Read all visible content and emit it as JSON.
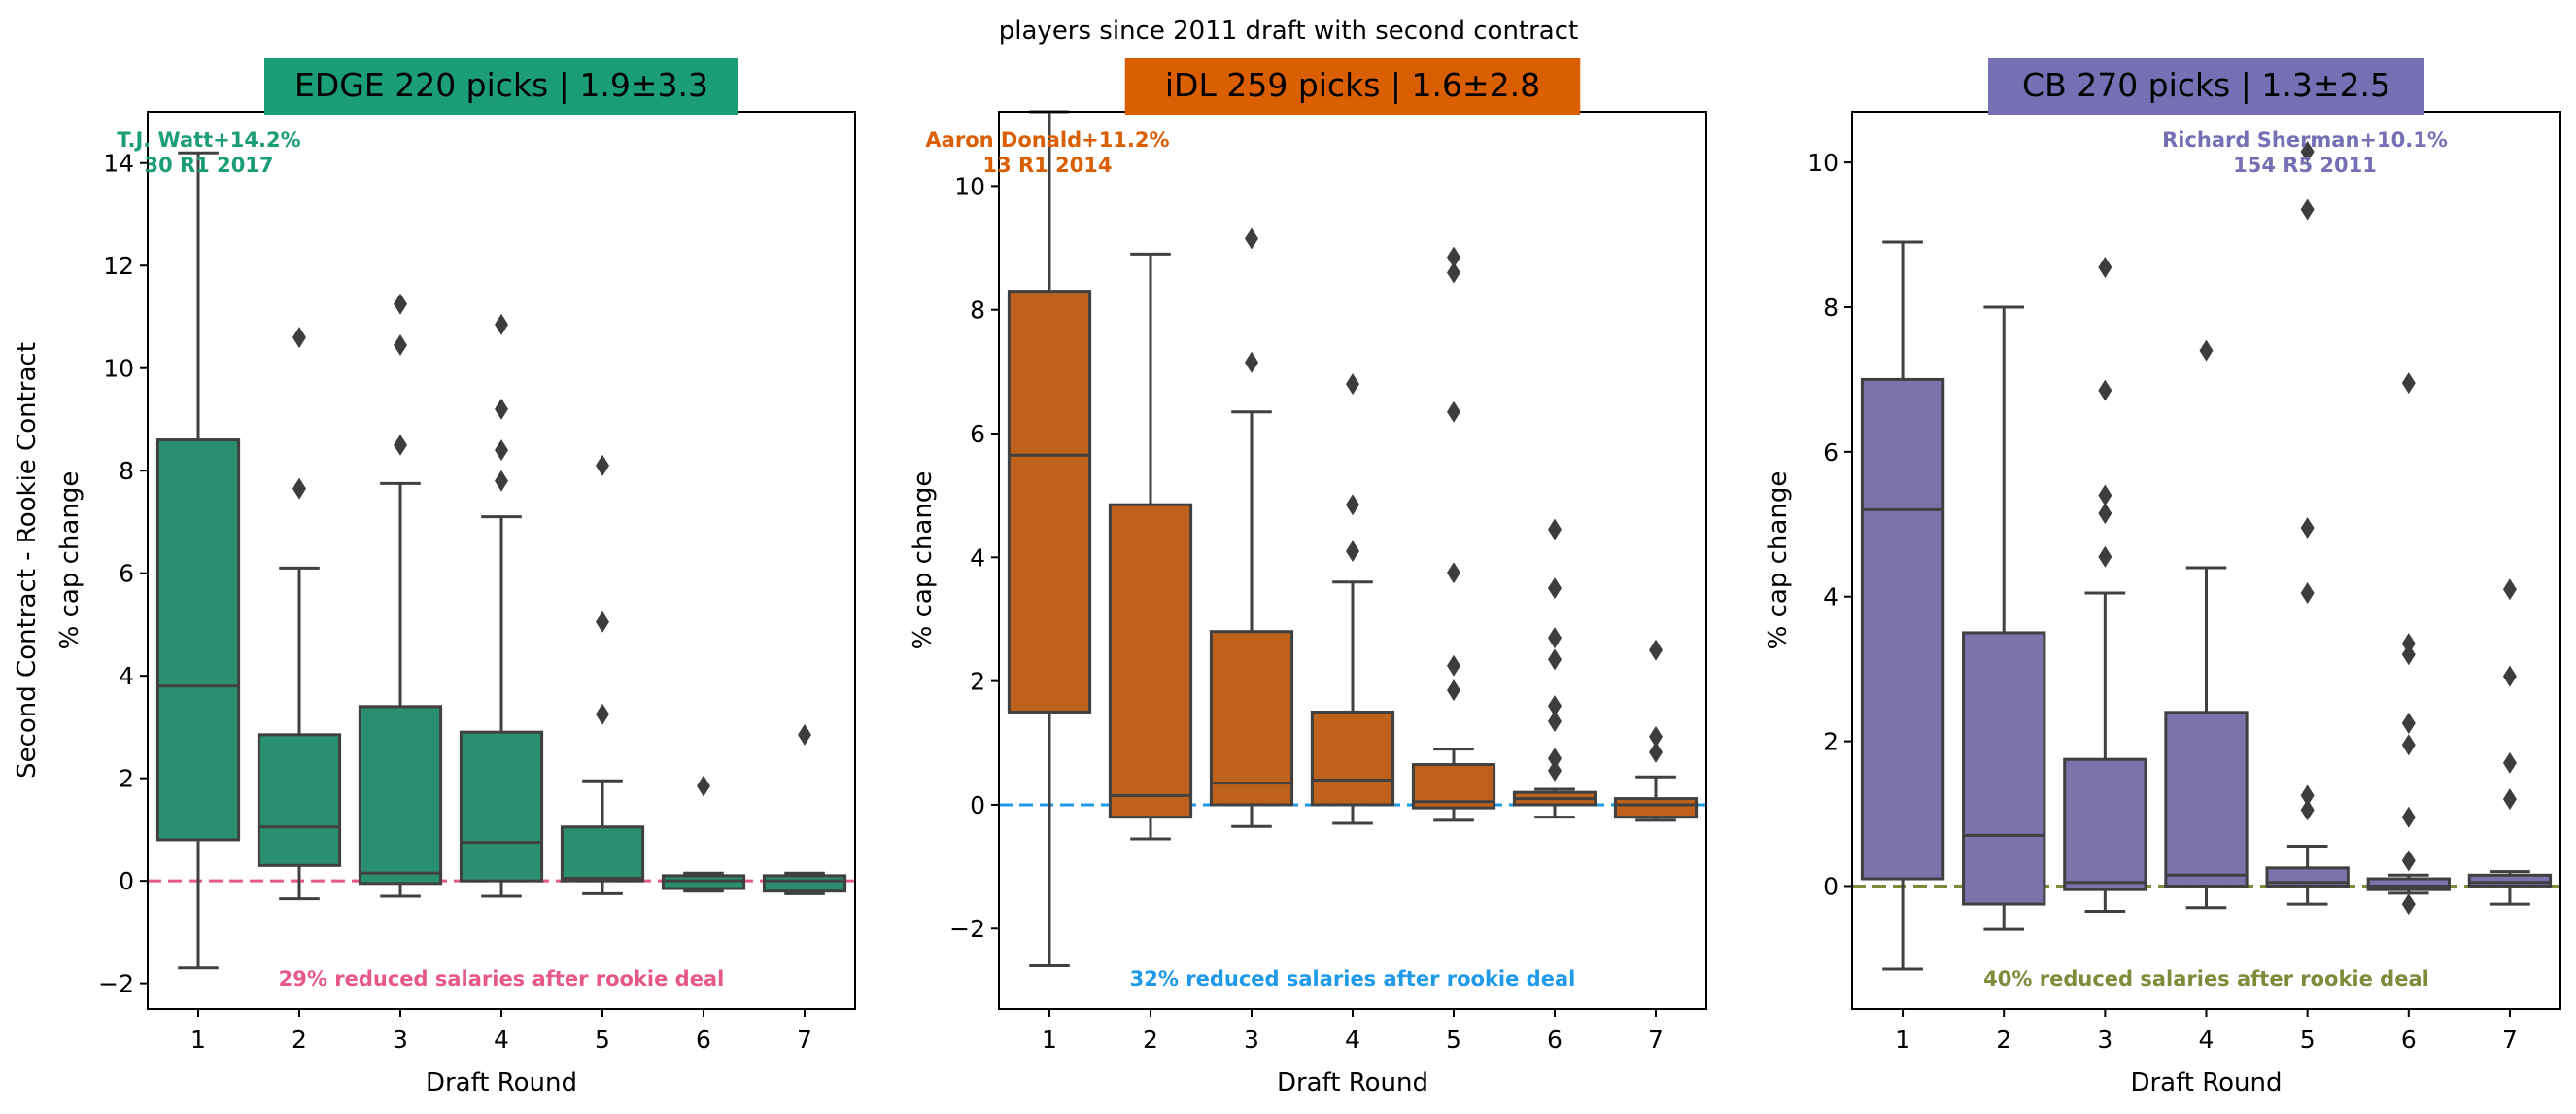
{
  "figure_title": "players since 2011 draft with second contract",
  "colors": {
    "edge": "#2A8E70",
    "idl": "#BE621B",
    "cb": "#7C73AC",
    "outline": "#404040"
  },
  "chart_data": [
    {
      "type": "box",
      "title": "EDGE 220 picks | 1.9±3.3",
      "xlabel": "Draft Round",
      "ylabel": [
        "Second Contract - Rookie Contract",
        "% cap change"
      ],
      "categories": [
        "1",
        "2",
        "3",
        "4",
        "5",
        "6",
        "7"
      ],
      "ylim": [
        -2.5,
        15
      ],
      "yticks": [
        -2,
        0,
        2,
        4,
        6,
        8,
        10,
        12,
        14
      ],
      "color": "#2A8E70",
      "title_bg": "#1B9E77",
      "ref_line": {
        "y": 0,
        "color": "#E7588A",
        "style": "dashed"
      },
      "boxes": [
        {
          "q1": 0.8,
          "median": 3.8,
          "q3": 8.6,
          "lo": -1.7,
          "hi": 14.2,
          "outliers": []
        },
        {
          "q1": 0.3,
          "median": 1.05,
          "q3": 2.85,
          "lo": -0.35,
          "hi": 6.1,
          "outliers": [
            7.65,
            10.6
          ]
        },
        {
          "q1": -0.05,
          "median": 0.15,
          "q3": 3.4,
          "lo": -0.3,
          "hi": 7.75,
          "outliers": [
            8.5,
            10.45,
            11.25
          ]
        },
        {
          "q1": 0.0,
          "median": 0.75,
          "q3": 2.9,
          "lo": -0.3,
          "hi": 7.1,
          "outliers": [
            7.8,
            8.4,
            9.2,
            10.85
          ]
        },
        {
          "q1": 0.0,
          "median": 0.05,
          "q3": 1.05,
          "lo": -0.25,
          "hi": 1.95,
          "outliers": [
            3.25,
            5.05,
            8.1
          ]
        },
        {
          "q1": -0.15,
          "median": 0.0,
          "q3": 0.1,
          "lo": -0.2,
          "hi": 0.15,
          "outliers": [
            1.85
          ]
        },
        {
          "q1": -0.2,
          "median": 0.0,
          "q3": 0.1,
          "lo": -0.25,
          "hi": 0.15,
          "outliers": [
            2.85
          ]
        }
      ],
      "top_label": {
        "line1": "T.J. Watt+14.2%",
        "line2": "30 R1 2017",
        "color": "#1B9E77"
      },
      "bottom_label": {
        "text": "29% reduced salaries after rookie deal",
        "color": "#E7588A"
      }
    },
    {
      "type": "box",
      "title": "iDL 259 picks | 1.6±2.8",
      "xlabel": "Draft Round",
      "ylabel": [
        "% cap change"
      ],
      "categories": [
        "1",
        "2",
        "3",
        "4",
        "5",
        "6",
        "7"
      ],
      "ylim": [
        -3.3,
        11.2
      ],
      "yticks": [
        -2,
        0,
        2,
        4,
        6,
        8,
        10
      ],
      "color": "#BE621B",
      "title_bg": "#D95F02",
      "ref_line": {
        "y": 0,
        "color": "#1F9AE8",
        "style": "dashed"
      },
      "boxes": [
        {
          "q1": 1.5,
          "median": 5.65,
          "q3": 8.3,
          "lo": -2.6,
          "hi": 11.2,
          "outliers": []
        },
        {
          "q1": -0.2,
          "median": 0.15,
          "q3": 4.85,
          "lo": -0.55,
          "hi": 8.9,
          "outliers": []
        },
        {
          "q1": 0.0,
          "median": 0.35,
          "q3": 2.8,
          "lo": -0.35,
          "hi": 6.35,
          "outliers": [
            7.15,
            9.15
          ]
        },
        {
          "q1": 0.0,
          "median": 0.4,
          "q3": 1.5,
          "lo": -0.3,
          "hi": 3.6,
          "outliers": [
            4.1,
            4.85,
            6.8
          ]
        },
        {
          "q1": -0.05,
          "median": 0.05,
          "q3": 0.65,
          "lo": -0.25,
          "hi": 0.9,
          "outliers": [
            1.85,
            2.25,
            3.75,
            6.35,
            8.6,
            8.85
          ]
        },
        {
          "q1": 0.0,
          "median": 0.1,
          "q3": 0.2,
          "lo": -0.2,
          "hi": 0.25,
          "outliers": [
            0.55,
            0.75,
            1.35,
            1.6,
            2.35,
            2.7,
            3.5,
            4.45
          ]
        },
        {
          "q1": -0.2,
          "median": 0.0,
          "q3": 0.1,
          "lo": -0.25,
          "hi": 0.45,
          "outliers": [
            0.85,
            1.1,
            2.5
          ]
        }
      ],
      "top_label": {
        "line1": "Aaron Donald+11.2%",
        "line2": "13 R1 2014",
        "color": "#D95F02"
      },
      "bottom_label": {
        "text": "32% reduced salaries after rookie deal",
        "color": "#1F9AE8"
      }
    },
    {
      "type": "box",
      "title": "CB 270 picks | 1.3±2.5",
      "xlabel": "Draft Round",
      "ylabel": [
        "% cap change"
      ],
      "categories": [
        "1",
        "2",
        "3",
        "4",
        "5",
        "6",
        "7"
      ],
      "ylim": [
        -1.7,
        10.7
      ],
      "yticks": [
        0,
        2,
        4,
        6,
        8,
        10
      ],
      "color": "#7C73AC",
      "title_bg": "#7570B3",
      "ref_line": {
        "y": 0,
        "color": "#7F8A3B",
        "style": "dashed"
      },
      "boxes": [
        {
          "q1": 0.1,
          "median": 5.2,
          "q3": 7.0,
          "lo": -1.15,
          "hi": 8.9,
          "outliers": []
        },
        {
          "q1": -0.25,
          "median": 0.7,
          "q3": 3.5,
          "lo": -0.6,
          "hi": 8.0,
          "outliers": []
        },
        {
          "q1": -0.05,
          "median": 0.05,
          "q3": 1.75,
          "lo": -0.35,
          "hi": 4.05,
          "outliers": [
            4.55,
            5.15,
            5.4,
            6.85,
            8.55
          ]
        },
        {
          "q1": 0.0,
          "median": 0.15,
          "q3": 2.4,
          "lo": -0.3,
          "hi": 4.4,
          "outliers": [
            7.4
          ]
        },
        {
          "q1": 0.0,
          "median": 0.05,
          "q3": 0.25,
          "lo": -0.25,
          "hi": 0.55,
          "outliers": [
            1.05,
            1.25,
            4.05,
            4.95,
            9.35,
            10.15
          ]
        },
        {
          "q1": -0.05,
          "median": 0.0,
          "q3": 0.1,
          "lo": -0.1,
          "hi": 0.15,
          "outliers": [
            -0.25,
            0.35,
            0.95,
            1.95,
            2.25,
            3.2,
            3.35,
            6.95
          ]
        },
        {
          "q1": 0.0,
          "median": 0.05,
          "q3": 0.15,
          "lo": -0.25,
          "hi": 0.2,
          "outliers": [
            1.2,
            1.7,
            2.9,
            4.1
          ]
        }
      ],
      "top_label": {
        "line1": "Richard Sherman+10.1%",
        "line2": "154 R5 2011",
        "color": "#7570B3"
      },
      "bottom_label": {
        "text": "40% reduced salaries after rookie deal",
        "color": "#7F8A3B"
      }
    }
  ]
}
